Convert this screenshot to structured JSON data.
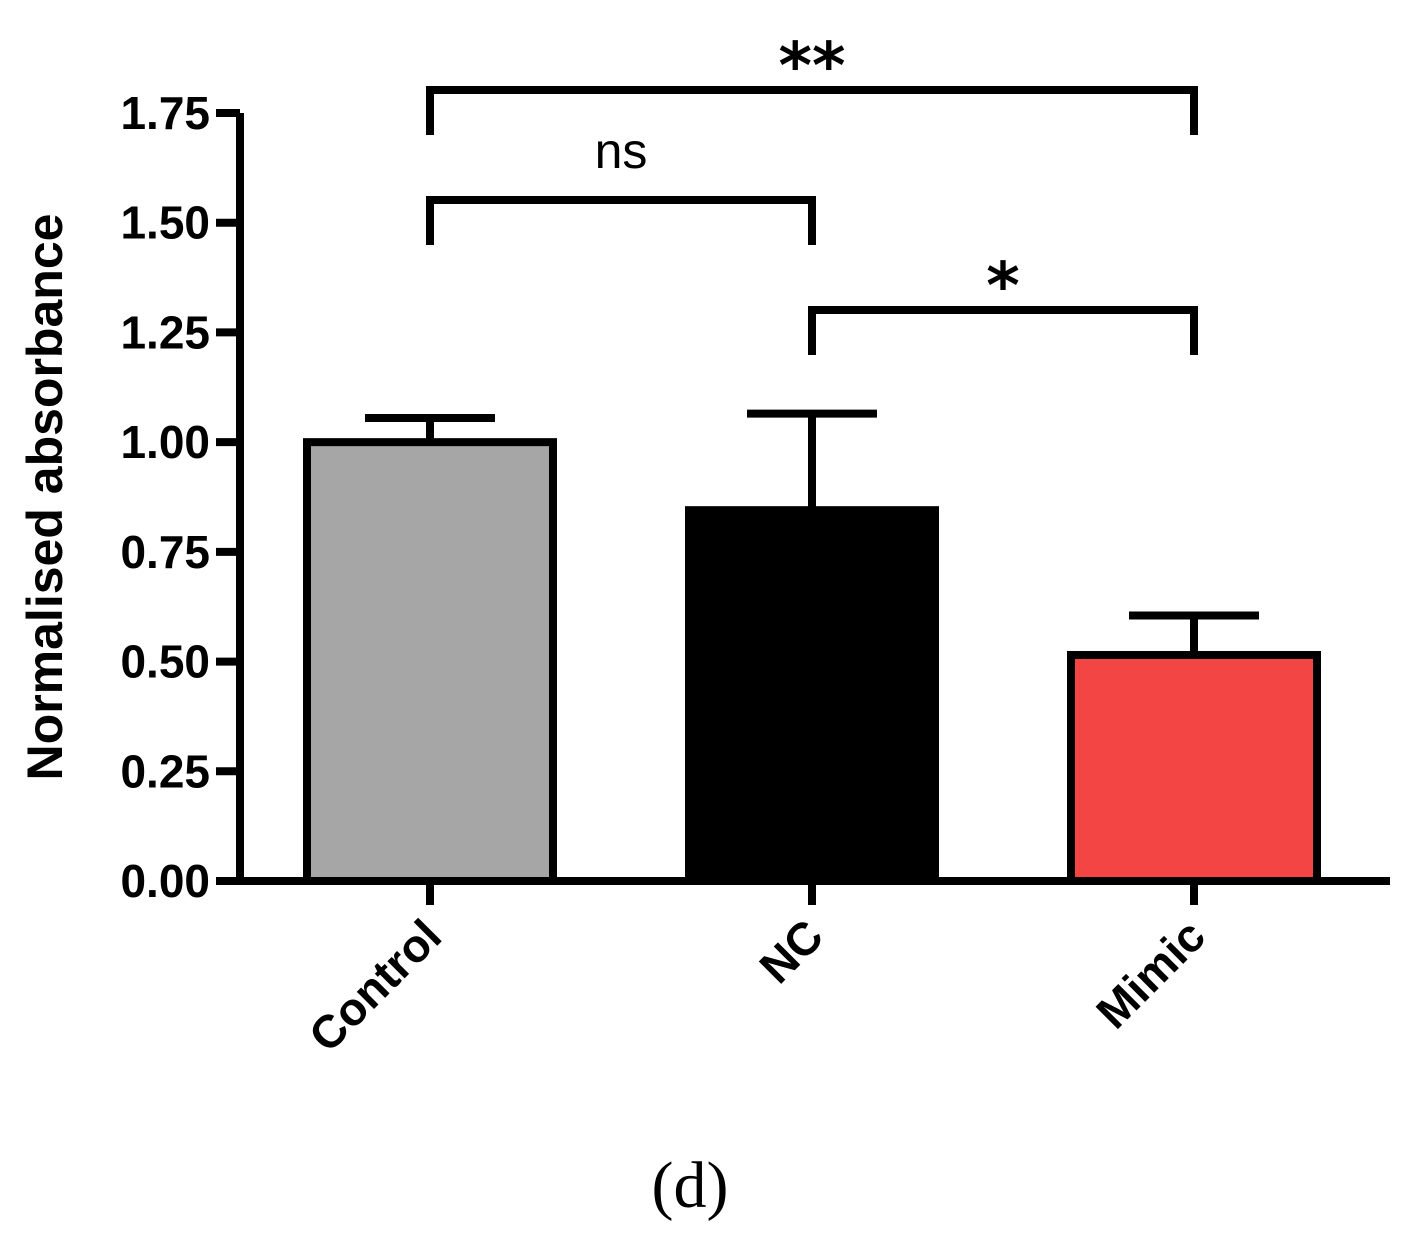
{
  "chart_data": {
    "type": "bar",
    "categories": [
      "Control",
      "NC",
      "Mimic"
    ],
    "values": [
      1.0,
      0.845,
      0.515
    ],
    "error_upper": [
      1.055,
      1.065,
      0.605
    ],
    "ylabel": "Normalised absorbance",
    "xlabel": "",
    "ylim": [
      0,
      1.75
    ],
    "yticks": [
      "0.00",
      "0.25",
      "0.50",
      "0.75",
      "1.00",
      "1.25",
      "1.50",
      "1.75"
    ],
    "bar_colors": [
      "#a6a6a6",
      "#000000",
      "#f44545"
    ],
    "grid": false,
    "significance": [
      {
        "from": "Control",
        "to": "NC",
        "label": "ns"
      },
      {
        "from": "NC",
        "to": "Mimic",
        "label": "*"
      },
      {
        "from": "Control",
        "to": "Mimic",
        "label": "**"
      }
    ],
    "panel_label": "(d)"
  }
}
